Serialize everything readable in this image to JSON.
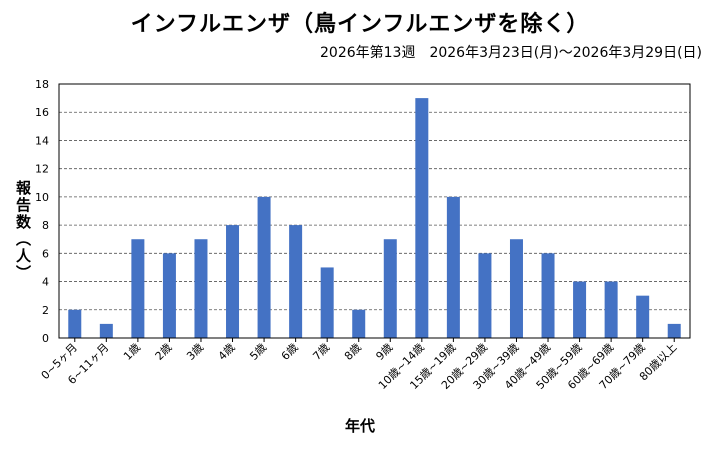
{
  "chart_data": {
    "type": "bar",
    "title": "インフルエンザ（鳥インフルエンザを除く）",
    "subtitle": "2026年第13週　2026年3月23日(月)～2026年3月29日(日)",
    "xlabel": "年代",
    "ylabel": "報告数（人）",
    "ylim": [
      0,
      18
    ],
    "yticks": [
      0,
      2,
      4,
      6,
      8,
      10,
      12,
      14,
      16,
      18
    ],
    "grid": true,
    "bar_color": "#4472c4",
    "categories": [
      "0~5ヶ月",
      "6~11ヶ月",
      "1歳",
      "2歳",
      "3歳",
      "4歳",
      "5歳",
      "6歳",
      "7歳",
      "8歳",
      "9歳",
      "10歳~14歳",
      "15歳~19歳",
      "20歳~29歳",
      "30歳~39歳",
      "40歳~49歳",
      "50歳~59歳",
      "60歳~69歳",
      "70歳~79歳",
      "80歳以上"
    ],
    "values": [
      2,
      1,
      7,
      6,
      7,
      8,
      10,
      8,
      5,
      2,
      7,
      17,
      10,
      6,
      7,
      6,
      4,
      4,
      3,
      1
    ]
  }
}
